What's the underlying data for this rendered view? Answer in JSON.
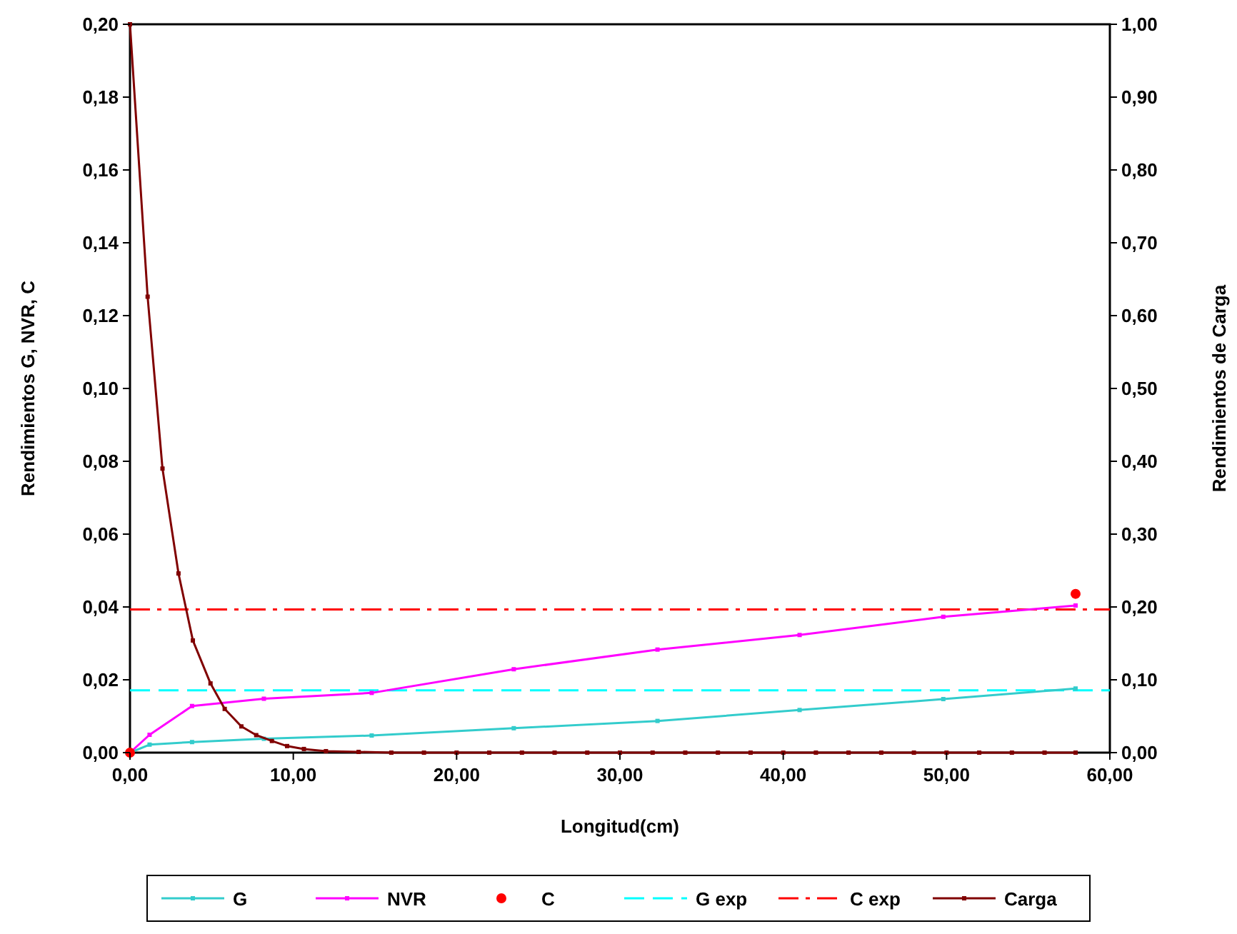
{
  "chart_data": {
    "type": "line",
    "xlabel": "Longitud(cm)",
    "ylabel": "Rendimientos G, NVR, C",
    "y2label": "Rendimientos de Carga",
    "xlim": [
      0,
      60
    ],
    "xticks": [
      {
        "value": 0,
        "label": "0,00"
      },
      {
        "value": 10,
        "label": "10,00"
      },
      {
        "value": 20,
        "label": "20,00"
      },
      {
        "value": 30,
        "label": "30,00"
      },
      {
        "value": 40,
        "label": "40,00"
      },
      {
        "value": 50,
        "label": "50,00"
      },
      {
        "value": 60,
        "label": "60,00"
      }
    ],
    "ylim": [
      0,
      0.2
    ],
    "yticks": [
      {
        "value": 0,
        "label": "0,00"
      },
      {
        "value": 0.02,
        "label": "0,02"
      },
      {
        "value": 0.04,
        "label": "0,04"
      },
      {
        "value": 0.06,
        "label": "0,06"
      },
      {
        "value": 0.08,
        "label": "0,08"
      },
      {
        "value": 0.1,
        "label": "0,10"
      },
      {
        "value": 0.12,
        "label": "0,12"
      },
      {
        "value": 0.14,
        "label": "0,14"
      },
      {
        "value": 0.16,
        "label": "0,16"
      },
      {
        "value": 0.18,
        "label": "0,18"
      },
      {
        "value": 0.2,
        "label": "0,20"
      }
    ],
    "y2lim": [
      0,
      1
    ],
    "y2ticks": [
      {
        "value": 0,
        "label": "0,00"
      },
      {
        "value": 0.1,
        "label": "0,10"
      },
      {
        "value": 0.2,
        "label": "0,20"
      },
      {
        "value": 0.3,
        "label": "0,30"
      },
      {
        "value": 0.4,
        "label": "0,40"
      },
      {
        "value": 0.5,
        "label": "0,50"
      },
      {
        "value": 0.6,
        "label": "0,60"
      },
      {
        "value": 0.7,
        "label": "0,70"
      },
      {
        "value": 0.8,
        "label": "0,80"
      },
      {
        "value": 0.9,
        "label": "0,90"
      },
      {
        "value": 1,
        "label": "1,00"
      }
    ],
    "grid": false,
    "legend": "bottom",
    "series": [
      {
        "name": "G",
        "color": "#33cccc",
        "marker": "square",
        "x": [
          0,
          1.2,
          3.8,
          8.2,
          14.8,
          23.5,
          32.3,
          41,
          49.8,
          57.9
        ],
        "values": [
          0,
          0.0022,
          0.0029,
          0.0038,
          0.0047,
          0.0067,
          0.0087,
          0.0117,
          0.0147,
          0.0176
        ]
      },
      {
        "name": "NVR",
        "color": "#ff00ff",
        "marker": "square",
        "x": [
          0,
          1.2,
          3.8,
          8.2,
          14.8,
          23.5,
          32.3,
          41,
          49.8,
          57.9
        ],
        "values": [
          0,
          0.0049,
          0.0128,
          0.0148,
          0.0164,
          0.0229,
          0.0283,
          0.0323,
          0.0373,
          0.0404
        ]
      },
      {
        "name": "C",
        "type": "scatter",
        "color": "#ff0000",
        "marker": "circle",
        "x": [
          0,
          57.9
        ],
        "values": [
          0,
          0.0436
        ]
      },
      {
        "name": "G exp",
        "color": "#00ffff",
        "marker": "none",
        "line_style": "dashed",
        "x": [
          0,
          60
        ],
        "values": [
          0.0171,
          0.0171
        ]
      },
      {
        "name": "C exp",
        "color": "#ff0000",
        "marker": "none",
        "line_style": "dashdot",
        "x": [
          0,
          60
        ],
        "values": [
          0.0393,
          0.0393
        ]
      },
      {
        "name": "Carga",
        "color": "#800000",
        "marker": "square",
        "axis": "y2",
        "x": [
          0,
          1.08,
          1.99,
          2.97,
          3.85,
          4.93,
          5.8,
          6.82,
          7.73,
          8.69,
          9.62,
          10.65,
          12,
          14,
          16,
          18,
          20,
          22,
          24,
          26,
          28,
          30,
          32,
          34,
          36,
          38,
          40,
          42,
          44,
          46,
          48,
          50,
          52,
          54,
          56,
          57.9
        ],
        "values": [
          1,
          0.626,
          0.39,
          0.246,
          0.154,
          0.095,
          0.06,
          0.036,
          0.024,
          0.016,
          0.009,
          0.005,
          0.002,
          0.001,
          0,
          0,
          0,
          0,
          0,
          0,
          0,
          0,
          0,
          0,
          0,
          0,
          0,
          0,
          0,
          0,
          0,
          0,
          0,
          0,
          0,
          0
        ]
      }
    ]
  }
}
